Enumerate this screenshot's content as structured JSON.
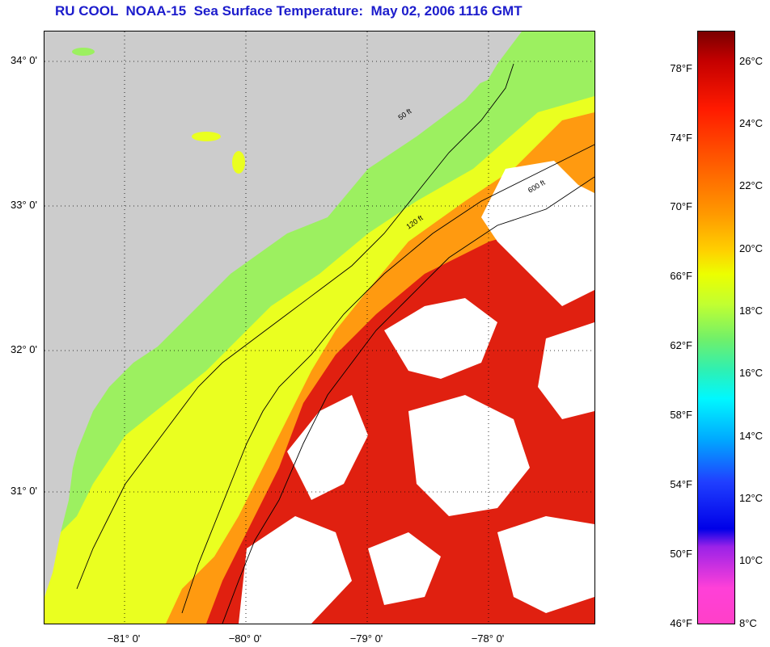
{
  "title": "RU COOL  NOAA-15  Sea Surface Temperature:  May 02, 2006 1116 GMT",
  "map": {
    "lat_labels": [
      {
        "label": "34° 0'",
        "value": 34.0
      },
      {
        "label": "33° 0'",
        "value": 33.0
      },
      {
        "label": "32° 0'",
        "value": 32.0
      },
      {
        "label": "31° 0'",
        "value": 31.0
      }
    ],
    "lon_labels": [
      {
        "label": "−81° 0'",
        "value": -81.0
      },
      {
        "label": "−80° 0'",
        "value": -80.0
      },
      {
        "label": "−79° 0'",
        "value": -79.0
      },
      {
        "label": "−78° 0'",
        "value": -78.0
      }
    ],
    "contour_labels": [
      "50 ft",
      "120 ft",
      "600 ft"
    ],
    "colors": {
      "land": "#cccccc",
      "cloud": "#ffffff",
      "cool_shelf": "#9cf060",
      "mid_shelf": "#eaff20",
      "slope": "#ff9a10",
      "gulf_stream": "#e02010"
    }
  },
  "colorbar": {
    "fahrenheit": [
      {
        "label": "78°F",
        "value": 78
      },
      {
        "label": "74°F",
        "value": 74
      },
      {
        "label": "70°F",
        "value": 70
      },
      {
        "label": "66°F",
        "value": 66
      },
      {
        "label": "62°F",
        "value": 62
      },
      {
        "label": "58°F",
        "value": 58
      },
      {
        "label": "54°F",
        "value": 54
      },
      {
        "label": "50°F",
        "value": 50
      },
      {
        "label": "46°F",
        "value": 46
      }
    ],
    "celsius": [
      {
        "label": "26°C",
        "value": 26
      },
      {
        "label": "24°C",
        "value": 24
      },
      {
        "label": "22°C",
        "value": 22
      },
      {
        "label": "20°C",
        "value": 20
      },
      {
        "label": "18°C",
        "value": 18
      },
      {
        "label": "16°C",
        "value": 16
      },
      {
        "label": "14°C",
        "value": 14
      },
      {
        "label": "12°C",
        "value": 12
      },
      {
        "label": "10°C",
        "value": 10
      },
      {
        "label": "8°C",
        "value": 8
      }
    ]
  }
}
